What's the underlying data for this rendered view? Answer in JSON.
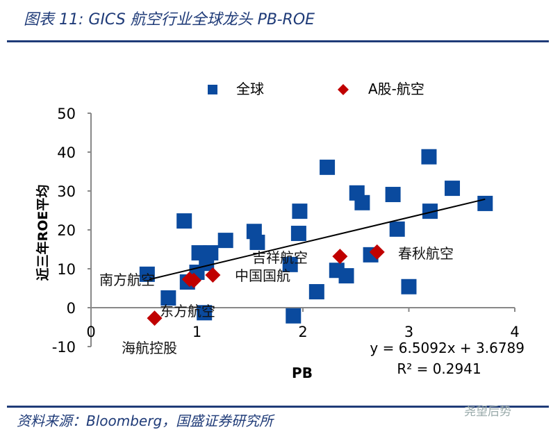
{
  "title": "图表 11:  GICS 航空行业全球龙头 PB-ROE",
  "source": "资料来源：Bloomberg，国盛证券研究所",
  "watermark": "尧望后势",
  "chart_data": {
    "type": "scatter",
    "xlabel": "PB",
    "ylabel": "近三年ROE平均",
    "xlim": [
      0,
      4
    ],
    "ylim": [
      -10,
      50
    ],
    "xticks": [
      0,
      1,
      2,
      3,
      4
    ],
    "yticks": [
      -10,
      0,
      10,
      20,
      30,
      40,
      50
    ],
    "legend_position": "top",
    "colors": {
      "global": "#0a4a9e",
      "ashare": "#c00000",
      "trend": "#000000"
    },
    "series": [
      {
        "name": "全球",
        "marker": "square",
        "points": [
          [
            0.53,
            8.6
          ],
          [
            0.73,
            2.5
          ],
          [
            0.88,
            22.3
          ],
          [
            0.91,
            6.6
          ],
          [
            1.0,
            9.1
          ],
          [
            1.02,
            14.1
          ],
          [
            1.09,
            11.4
          ],
          [
            1.13,
            14.1
          ],
          [
            1.07,
            -1.3
          ],
          [
            1.27,
            17.3
          ],
          [
            1.54,
            19.6
          ],
          [
            1.57,
            16.8
          ],
          [
            1.88,
            11.1
          ],
          [
            1.91,
            -2.1
          ],
          [
            1.97,
            24.8
          ],
          [
            1.96,
            19.1
          ],
          [
            2.13,
            4.1
          ],
          [
            2.23,
            36.1
          ],
          [
            2.32,
            9.6
          ],
          [
            2.41,
            8.2
          ],
          [
            2.51,
            29.5
          ],
          [
            2.56,
            27.0
          ],
          [
            2.64,
            13.6
          ],
          [
            2.85,
            29.1
          ],
          [
            2.89,
            20.2
          ],
          [
            3.0,
            5.4
          ],
          [
            3.19,
            38.8
          ],
          [
            3.2,
            24.8
          ],
          [
            3.41,
            30.7
          ],
          [
            3.72,
            26.8
          ]
        ]
      },
      {
        "name": "A股-航空",
        "marker": "diamond",
        "points": [
          {
            "label": "海航控股",
            "x": 0.6,
            "y": -2.7
          },
          {
            "label": "南方航空",
            "x": 0.93,
            "y": 7.3
          },
          {
            "label": "东方航空",
            "x": 0.97,
            "y": 7.0
          },
          {
            "label": "中国国航",
            "x": 1.15,
            "y": 8.4
          },
          {
            "label": "吉祥航空",
            "x": 2.35,
            "y": 13.2
          },
          {
            "label": "春秋航空",
            "x": 2.7,
            "y": 14.3
          }
        ]
      }
    ],
    "trendline": {
      "slope": 6.5092,
      "intercept": 3.6789,
      "x_range": [
        0.55,
        3.72
      ]
    },
    "equation": "y = 6.5092x + 3.6789",
    "r_squared": "R² = 0.2941"
  }
}
